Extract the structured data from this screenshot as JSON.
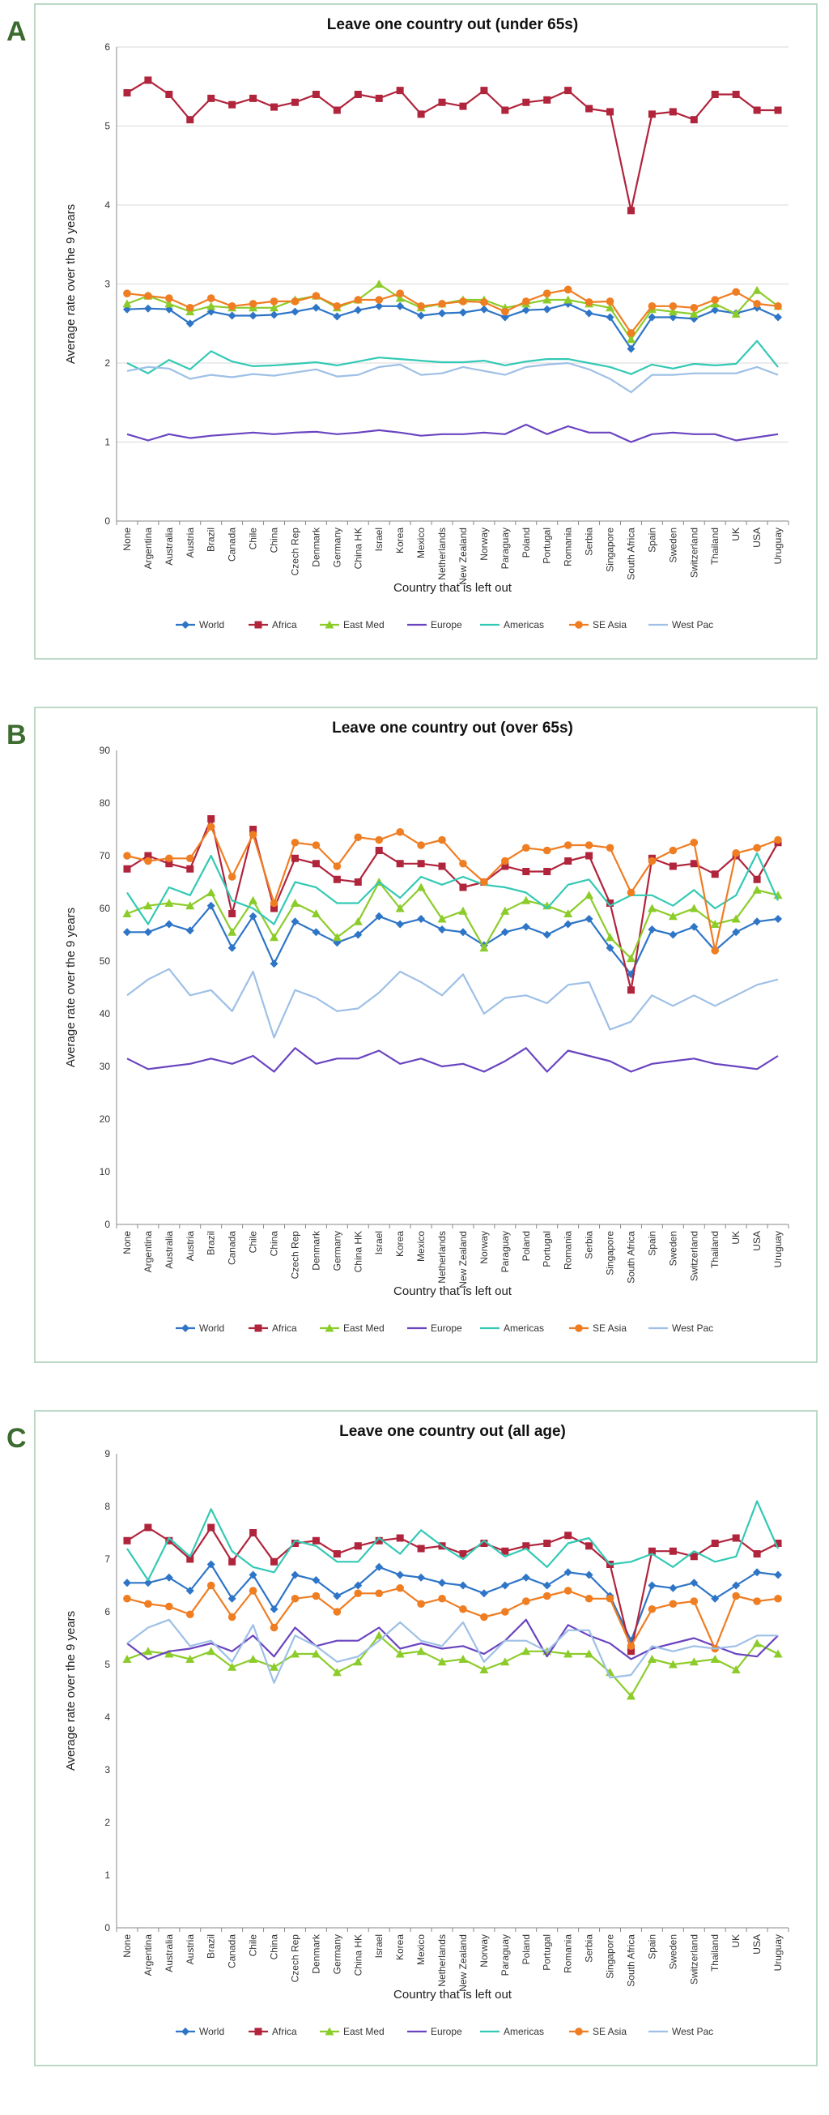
{
  "panels": [
    {
      "letter": "A"
    },
    {
      "letter": "B"
    },
    {
      "letter": "C"
    }
  ],
  "series_colors": {
    "World": "#2e75c7",
    "Africa": "#b0243c",
    "East Med": "#8ccc2a",
    "Europe": "#6a44c0",
    "Americas": "#33c9b4",
    "SE Asia": "#ef7d22",
    "West Pac": "#9ec0e6"
  },
  "chart_data": [
    {
      "type": "line",
      "title": "Leave one country out (under 65s)",
      "xlabel": "Country that is left out",
      "ylabel": "Average rate over the 9 years",
      "ylim": [
        0,
        6
      ],
      "yticks": [
        "0",
        "1",
        "2",
        "3",
        "4",
        "5",
        "6"
      ],
      "grid": true,
      "legend": "bottom",
      "categories": [
        "None",
        "Argentina",
        "Australia",
        "Austria",
        "Brazil",
        "Canada",
        "Chile",
        "China",
        "Czech Rep",
        "Denmark",
        "Germany",
        "China HK",
        "Israel",
        "Korea",
        "Mexico",
        "Netherlands",
        "New Zealand",
        "Norway",
        "Paraguay",
        "Poland",
        "Portugal",
        "Romania",
        "Serbia",
        "Singapore",
        "South Africa",
        "Spain",
        "Sweden",
        "Switzerland",
        "Thailand",
        "UK",
        "USA",
        "Uruguay"
      ],
      "series": [
        {
          "name": "World",
          "marker": "diamond",
          "values": [
            2.68,
            2.69,
            2.68,
            2.5,
            2.65,
            2.6,
            2.6,
            2.61,
            2.65,
            2.7,
            2.59,
            2.67,
            2.72,
            2.72,
            2.6,
            2.63,
            2.64,
            2.68,
            2.58,
            2.67,
            2.68,
            2.75,
            2.63,
            2.58,
            2.18,
            2.58,
            2.58,
            2.56,
            2.67,
            2.63,
            2.7,
            2.58
          ]
        },
        {
          "name": "Africa",
          "marker": "square",
          "values": [
            5.42,
            5.58,
            5.4,
            5.08,
            5.35,
            5.27,
            5.35,
            5.24,
            5.3,
            5.4,
            5.2,
            5.4,
            5.35,
            5.45,
            5.15,
            5.3,
            5.25,
            5.45,
            5.2,
            5.3,
            5.33,
            5.45,
            5.22,
            5.18,
            3.93,
            5.15,
            5.18,
            5.08,
            5.4,
            5.4,
            5.2,
            5.2
          ]
        },
        {
          "name": "East Med",
          "marker": "triangle",
          "values": [
            2.75,
            2.85,
            2.75,
            2.65,
            2.72,
            2.7,
            2.7,
            2.7,
            2.8,
            2.85,
            2.7,
            2.8,
            3.0,
            2.82,
            2.7,
            2.75,
            2.8,
            2.8,
            2.7,
            2.75,
            2.8,
            2.8,
            2.75,
            2.7,
            2.3,
            2.68,
            2.65,
            2.62,
            2.75,
            2.62,
            2.92,
            2.72
          ]
        },
        {
          "name": "Europe",
          "marker": "line",
          "values": [
            1.1,
            1.02,
            1.1,
            1.05,
            1.08,
            1.1,
            1.12,
            1.1,
            1.12,
            1.13,
            1.1,
            1.12,
            1.15,
            1.12,
            1.08,
            1.1,
            1.1,
            1.12,
            1.1,
            1.22,
            1.1,
            1.2,
            1.12,
            1.12,
            1.0,
            1.1,
            1.12,
            1.1,
            1.1,
            1.02,
            1.06,
            1.1
          ]
        },
        {
          "name": "Americas",
          "marker": "line",
          "values": [
            2.0,
            1.87,
            2.04,
            1.92,
            2.15,
            2.02,
            1.96,
            1.97,
            1.99,
            2.01,
            1.97,
            2.02,
            2.07,
            2.05,
            2.03,
            2.01,
            2.01,
            2.03,
            1.97,
            2.02,
            2.05,
            2.05,
            2.0,
            1.95,
            1.86,
            1.98,
            1.93,
            1.99,
            1.97,
            1.99,
            2.28,
            1.95
          ]
        },
        {
          "name": "SE Asia",
          "marker": "circle",
          "values": [
            2.88,
            2.85,
            2.82,
            2.7,
            2.82,
            2.72,
            2.75,
            2.78,
            2.78,
            2.85,
            2.72,
            2.8,
            2.8,
            2.88,
            2.72,
            2.75,
            2.78,
            2.77,
            2.65,
            2.78,
            2.88,
            2.93,
            2.77,
            2.78,
            2.38,
            2.72,
            2.72,
            2.7,
            2.8,
            2.9,
            2.75,
            2.72
          ]
        },
        {
          "name": "West Pac",
          "marker": "line",
          "values": [
            1.9,
            1.95,
            1.93,
            1.8,
            1.85,
            1.82,
            1.86,
            1.84,
            1.88,
            1.92,
            1.83,
            1.85,
            1.95,
            1.98,
            1.85,
            1.87,
            1.95,
            1.9,
            1.85,
            1.95,
            1.98,
            2.0,
            1.92,
            1.8,
            1.63,
            1.85,
            1.85,
            1.87,
            1.87,
            1.87,
            1.95,
            1.85
          ]
        }
      ]
    },
    {
      "type": "line",
      "title": "Leave one country out (over 65s)",
      "xlabel": "Country that is left out",
      "ylabel": "Average rate over the 9 years",
      "ylim": [
        0,
        90
      ],
      "yticks": [
        "0",
        "10",
        "20",
        "30",
        "40",
        "50",
        "60",
        "70",
        "80",
        "90"
      ],
      "grid": false,
      "legend": "bottom",
      "categories": [
        "None",
        "Argentina",
        "Australia",
        "Austria",
        "Brazil",
        "Canada",
        "Chile",
        "China",
        "Czech Rep",
        "Denmark",
        "Germany",
        "China HK",
        "Israel",
        "Korea",
        "Mexico",
        "Netherlands",
        "New Zealand",
        "Norway",
        "Paraguay",
        "Poland",
        "Portugal",
        "Romania",
        "Serbia",
        "Singapore",
        "South Africa",
        "Spain",
        "Sweden",
        "Switzerland",
        "Thailand",
        "UK",
        "USA",
        "Uruguay"
      ],
      "series": [
        {
          "name": "World",
          "marker": "diamond",
          "values": [
            55.5,
            55.5,
            57.0,
            55.8,
            60.5,
            52.5,
            58.5,
            49.5,
            57.5,
            55.5,
            53.5,
            55.0,
            58.5,
            57.0,
            58.0,
            56.0,
            55.5,
            53.0,
            55.5,
            56.5,
            55.0,
            57.0,
            58.0,
            52.5,
            47.5,
            56.0,
            55.0,
            56.5,
            52.0,
            55.5,
            57.5,
            58.0
          ]
        },
        {
          "name": "Africa",
          "marker": "square",
          "values": [
            67.5,
            70.0,
            68.5,
            67.5,
            77.0,
            59.0,
            75.0,
            60.0,
            69.5,
            68.5,
            65.5,
            65.0,
            71.0,
            68.5,
            68.5,
            68.0,
            64.0,
            65.0,
            68.0,
            67.0,
            67.0,
            69.0,
            70.0,
            61.0,
            44.5,
            69.5,
            68.0,
            68.5,
            66.5,
            70.0,
            65.5,
            72.5
          ]
        },
        {
          "name": "East Med",
          "marker": "triangle",
          "values": [
            59.0,
            60.5,
            61.0,
            60.5,
            63.0,
            55.5,
            61.5,
            54.5,
            61.0,
            59.0,
            54.5,
            57.5,
            65.0,
            60.0,
            64.0,
            58.0,
            59.5,
            52.5,
            59.5,
            61.5,
            60.5,
            59.0,
            62.5,
            54.5,
            50.5,
            60.0,
            58.5,
            60.0,
            57.0,
            58.0,
            63.5,
            62.5
          ]
        },
        {
          "name": "Europe",
          "marker": "line",
          "values": [
            31.5,
            29.5,
            30.0,
            30.5,
            31.5,
            30.5,
            32.0,
            29.0,
            33.5,
            30.5,
            31.5,
            31.5,
            33.0,
            30.5,
            31.5,
            30.0,
            30.5,
            29.0,
            31.0,
            33.5,
            29.0,
            33.0,
            32.0,
            31.0,
            29.0,
            30.5,
            31.0,
            31.5,
            30.5,
            30.0,
            29.5,
            32.0
          ]
        },
        {
          "name": "Americas",
          "marker": "line",
          "values": [
            63.0,
            57.0,
            64.0,
            62.5,
            70.0,
            61.5,
            60.0,
            57.0,
            65.0,
            64.0,
            61.0,
            61.0,
            65.0,
            62.0,
            66.0,
            64.5,
            66.0,
            64.5,
            64.0,
            63.0,
            60.0,
            64.5,
            65.5,
            60.5,
            62.5,
            62.5,
            60.5,
            63.5,
            60.0,
            62.5,
            70.5,
            61.5
          ]
        },
        {
          "name": "SE Asia",
          "marker": "circle",
          "values": [
            70.0,
            69.0,
            69.5,
            69.5,
            75.5,
            66.0,
            74.0,
            61.0,
            72.5,
            72.0,
            68.0,
            73.5,
            73.0,
            74.5,
            72.0,
            73.0,
            68.5,
            65.0,
            69.0,
            71.5,
            71.0,
            72.0,
            72.0,
            71.5,
            63.0,
            69.0,
            71.0,
            72.5,
            52.0,
            70.5,
            71.5,
            73.0
          ]
        },
        {
          "name": "West Pac",
          "marker": "line",
          "values": [
            43.5,
            46.5,
            48.5,
            43.5,
            44.5,
            40.5,
            48.0,
            35.5,
            44.5,
            43.0,
            40.5,
            41.0,
            44.0,
            48.0,
            46.0,
            43.5,
            47.5,
            40.0,
            43.0,
            43.5,
            42.0,
            45.5,
            46.0,
            37.0,
            38.5,
            43.5,
            41.5,
            43.5,
            41.5,
            43.5,
            45.5,
            46.5
          ]
        }
      ]
    },
    {
      "type": "line",
      "title": "Leave one country out (all age)",
      "xlabel": "Country that is left out",
      "ylabel": "Average rate over the 9 years",
      "ylim": [
        0,
        9
      ],
      "yticks": [
        "0",
        "1",
        "2",
        "3",
        "4",
        "5",
        "6",
        "7",
        "8",
        "9"
      ],
      "grid": false,
      "legend": "bottom",
      "categories": [
        "None",
        "Argentina",
        "Australia",
        "Austria",
        "Brazil",
        "Canada",
        "Chile",
        "China",
        "Czech Rep",
        "Denmark",
        "Germany",
        "China HK",
        "Israel",
        "Korea",
        "Mexico",
        "Netherlands",
        "New Zealand",
        "Norway",
        "Paraguay",
        "Poland",
        "Portugal",
        "Romania",
        "Serbia",
        "Singapore",
        "South Africa",
        "Spain",
        "Sweden",
        "Switzerland",
        "Thailand",
        "UK",
        "USA",
        "Uruguay"
      ],
      "series": [
        {
          "name": "World",
          "marker": "diamond",
          "values": [
            6.55,
            6.55,
            6.65,
            6.4,
            6.9,
            6.25,
            6.7,
            6.05,
            6.7,
            6.6,
            6.3,
            6.5,
            6.85,
            6.7,
            6.65,
            6.55,
            6.5,
            6.35,
            6.5,
            6.65,
            6.5,
            6.75,
            6.7,
            6.3,
            5.45,
            6.5,
            6.45,
            6.55,
            6.25,
            6.5,
            6.75,
            6.7
          ]
        },
        {
          "name": "Africa",
          "marker": "square",
          "values": [
            7.35,
            7.6,
            7.35,
            7.0,
            7.6,
            6.95,
            7.5,
            6.95,
            7.3,
            7.35,
            7.1,
            7.25,
            7.35,
            7.4,
            7.2,
            7.25,
            7.1,
            7.3,
            7.15,
            7.25,
            7.3,
            7.45,
            7.25,
            6.9,
            5.25,
            7.15,
            7.15,
            7.05,
            7.3,
            7.4,
            7.1,
            7.3
          ]
        },
        {
          "name": "East Med",
          "marker": "triangle",
          "values": [
            5.1,
            5.25,
            5.2,
            5.1,
            5.25,
            4.95,
            5.1,
            4.95,
            5.2,
            5.2,
            4.85,
            5.05,
            5.55,
            5.2,
            5.25,
            5.05,
            5.1,
            4.9,
            5.05,
            5.25,
            5.25,
            5.2,
            5.2,
            4.85,
            4.4,
            5.1,
            5.0,
            5.05,
            5.1,
            4.9,
            5.4,
            5.2
          ]
        },
        {
          "name": "Europe",
          "marker": "line",
          "values": [
            5.4,
            5.1,
            5.25,
            5.3,
            5.4,
            5.25,
            5.55,
            5.15,
            5.7,
            5.35,
            5.45,
            5.45,
            5.7,
            5.3,
            5.4,
            5.3,
            5.35,
            5.2,
            5.45,
            5.85,
            5.15,
            5.75,
            5.55,
            5.4,
            5.1,
            5.3,
            5.4,
            5.5,
            5.35,
            5.2,
            5.15,
            5.55
          ]
        },
        {
          "name": "Americas",
          "marker": "line",
          "values": [
            7.2,
            6.6,
            7.4,
            7.05,
            7.95,
            7.15,
            6.85,
            6.75,
            7.35,
            7.25,
            6.95,
            6.95,
            7.4,
            7.1,
            7.55,
            7.25,
            7.0,
            7.35,
            7.05,
            7.2,
            6.85,
            7.3,
            7.4,
            6.9,
            6.95,
            7.1,
            6.85,
            7.15,
            6.95,
            7.05,
            8.1,
            7.2
          ]
        },
        {
          "name": "SE Asia",
          "marker": "circle",
          "values": [
            6.25,
            6.15,
            6.1,
            5.95,
            6.5,
            5.9,
            6.4,
            5.7,
            6.25,
            6.3,
            6.0,
            6.35,
            6.35,
            6.45,
            6.15,
            6.25,
            6.05,
            5.9,
            6.0,
            6.2,
            6.3,
            6.4,
            6.25,
            6.25,
            5.35,
            6.05,
            6.15,
            6.2,
            5.3,
            6.3,
            6.2,
            6.25
          ]
        },
        {
          "name": "West Pac",
          "marker": "line",
          "values": [
            5.4,
            5.7,
            5.85,
            5.35,
            5.45,
            5.05,
            5.75,
            4.65,
            5.55,
            5.35,
            5.05,
            5.15,
            5.45,
            5.8,
            5.45,
            5.35,
            5.8,
            5.05,
            5.45,
            5.45,
            5.25,
            5.65,
            5.65,
            4.75,
            4.8,
            5.35,
            5.25,
            5.35,
            5.3,
            5.35,
            5.55,
            5.55
          ]
        }
      ]
    }
  ]
}
